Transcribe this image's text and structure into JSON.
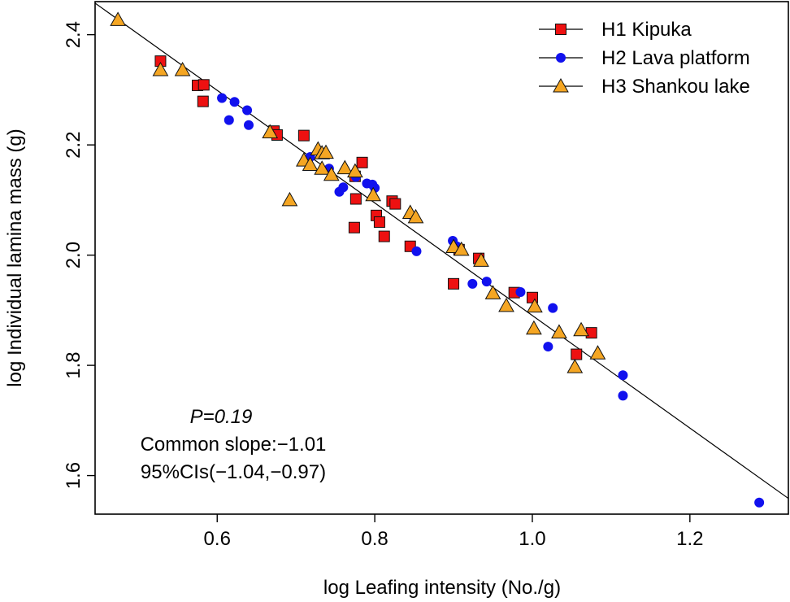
{
  "chart_data": {
    "type": "scatter",
    "title": "",
    "xlabel": "log Leafing intensity (No./g)",
    "ylabel": "log Individual lamina mass (g)",
    "xlim": [
      0.445,
      1.325
    ],
    "ylim": [
      1.53,
      2.46
    ],
    "xticks": [
      0.6,
      0.8,
      1.0,
      1.2
    ],
    "xtick_labels": [
      "0.6",
      "0.8",
      "1.0",
      "1.2"
    ],
    "yticks": [
      1.6,
      1.8,
      2.0,
      2.2,
      2.4
    ],
    "ytick_labels": [
      "1.6",
      "1.8",
      "2.0",
      "2.2",
      "2.4"
    ],
    "grid": false,
    "legend_position": "top-right",
    "fit_line": {
      "x": [
        0.445,
        1.325
      ],
      "y": [
        2.4573,
        1.5585
      ],
      "slope": -1.01
    },
    "annotations": {
      "p_value": "P=0.19",
      "slope_text": "Common slope:−1.01",
      "ci_text": "95%CIs(−1.04,−0.97)"
    },
    "series": [
      {
        "name": "H1 Kipuka",
        "marker": "square",
        "color": "#ee1111",
        "points": [
          [
            0.528,
            2.352
          ],
          [
            0.575,
            2.308
          ],
          [
            0.583,
            2.309
          ],
          [
            0.582,
            2.279
          ],
          [
            0.672,
            2.225
          ],
          [
            0.676,
            2.218
          ],
          [
            0.71,
            2.217
          ],
          [
            0.775,
            2.143
          ],
          [
            0.784,
            2.168
          ],
          [
            0.776,
            2.102
          ],
          [
            0.774,
            2.05
          ],
          [
            0.802,
            2.072
          ],
          [
            0.806,
            2.06
          ],
          [
            0.812,
            2.034
          ],
          [
            0.822,
            2.098
          ],
          [
            0.826,
            2.093
          ],
          [
            0.845,
            2.016
          ],
          [
            0.9,
            1.948
          ],
          [
            0.907,
            2.01
          ],
          [
            0.932,
            1.994
          ],
          [
            0.977,
            1.932
          ],
          [
            1.0,
            1.923
          ],
          [
            1.056,
            1.82
          ],
          [
            1.075,
            1.859
          ]
        ]
      },
      {
        "name": "H2 Lava platform",
        "marker": "circle",
        "color": "#1111ee",
        "points": [
          [
            0.606,
            2.285
          ],
          [
            0.622,
            2.278
          ],
          [
            0.615,
            2.245
          ],
          [
            0.638,
            2.263
          ],
          [
            0.64,
            2.236
          ],
          [
            0.718,
            2.178
          ],
          [
            0.742,
            2.157
          ],
          [
            0.755,
            2.115
          ],
          [
            0.76,
            2.123
          ],
          [
            0.776,
            2.142
          ],
          [
            0.79,
            2.13
          ],
          [
            0.797,
            2.128
          ],
          [
            0.8,
            2.122
          ],
          [
            0.85,
            2.067
          ],
          [
            0.853,
            2.007
          ],
          [
            0.899,
            2.026
          ],
          [
            0.904,
            2.016
          ],
          [
            0.924,
            1.948
          ],
          [
            0.942,
            1.952
          ],
          [
            0.985,
            1.933
          ],
          [
            1.026,
            1.904
          ],
          [
            1.02,
            1.834
          ],
          [
            1.115,
            1.782
          ],
          [
            1.115,
            1.745
          ],
          [
            1.288,
            1.551
          ]
        ]
      },
      {
        "name": "H3 Shankou lake",
        "marker": "triangle",
        "color": "#f5a623",
        "points": [
          [
            0.474,
            2.427
          ],
          [
            0.528,
            2.336
          ],
          [
            0.556,
            2.336
          ],
          [
            0.667,
            2.223
          ],
          [
            0.692,
            2.1
          ],
          [
            0.71,
            2.172
          ],
          [
            0.718,
            2.164
          ],
          [
            0.728,
            2.192
          ],
          [
            0.733,
            2.185
          ],
          [
            0.738,
            2.186
          ],
          [
            0.733,
            2.157
          ],
          [
            0.745,
            2.146
          ],
          [
            0.762,
            2.158
          ],
          [
            0.775,
            2.152
          ],
          [
            0.798,
            2.109
          ],
          [
            0.845,
            2.077
          ],
          [
            0.852,
            2.069
          ],
          [
            0.9,
            2.015
          ],
          [
            0.91,
            2.01
          ],
          [
            0.935,
            1.99
          ],
          [
            0.95,
            1.931
          ],
          [
            0.967,
            1.908
          ],
          [
            1.003,
            1.907
          ],
          [
            1.002,
            1.867
          ],
          [
            1.034,
            1.86
          ],
          [
            1.054,
            1.797
          ],
          [
            1.062,
            1.864
          ],
          [
            1.083,
            1.822
          ]
        ]
      }
    ]
  }
}
